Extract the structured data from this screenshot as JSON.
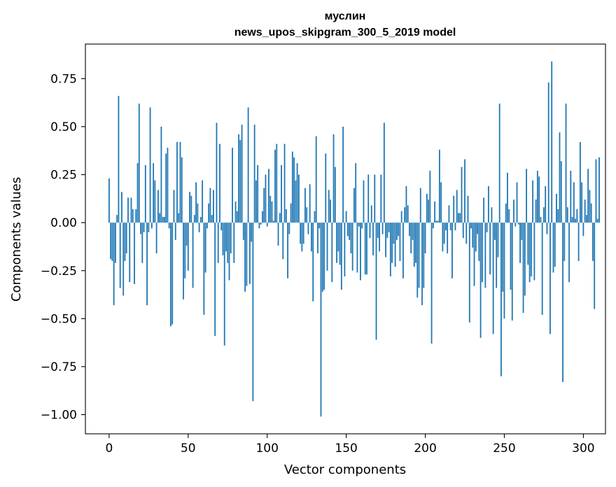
{
  "chart_data": {
    "type": "bar",
    "title": "муслин",
    "subtitle": "news_upos_skipgram_300_5_2019 model",
    "xlabel": "Vector components",
    "ylabel": "Components values",
    "xlim": [
      -15,
      314
    ],
    "ylim": [
      -1.1,
      0.93
    ],
    "xticks": [
      0,
      50,
      100,
      150,
      200,
      250,
      300
    ],
    "xtick_labels": [
      "0",
      "50",
      "100",
      "150",
      "200",
      "250",
      "300"
    ],
    "yticks": [
      -1.0,
      -0.75,
      -0.5,
      -0.25,
      0.0,
      0.25,
      0.5,
      0.75
    ],
    "ytick_labels": [
      "−1.00",
      "−0.75",
      "−0.50",
      "−0.25",
      "0.00",
      "0.25",
      "0.50",
      "0.75"
    ],
    "grid": false,
    "bar_color": "#1f77b4",
    "values": [
      0.23,
      -0.19,
      -0.2,
      -0.43,
      -0.21,
      0.04,
      0.66,
      -0.34,
      0.16,
      -0.38,
      -0.2,
      -0.16,
      0.13,
      -0.31,
      0.13,
      0.07,
      -0.32,
      0.07,
      0.31,
      0.62,
      -0.06,
      -0.21,
      -0.05,
      0.3,
      -0.43,
      -0.05,
      0.6,
      -0.03,
      0.31,
      0.22,
      -0.16,
      0.17,
      0.05,
      0.5,
      0.03,
      0.03,
      0.36,
      0.39,
      -0.03,
      -0.54,
      -0.53,
      0.17,
      -0.09,
      0.42,
      0.05,
      0.42,
      0.34,
      -0.4,
      -0.29,
      -0.12,
      -0.25,
      0.16,
      0.14,
      -0.34,
      0.04,
      0.21,
      0.1,
      -0.05,
      0.03,
      0.22,
      -0.48,
      -0.26,
      -0.03,
      0.1,
      0.18,
      0.04,
      0.17,
      -0.59,
      0.52,
      -0.21,
      0.41,
      -0.04,
      -0.17,
      -0.64,
      -0.15,
      -0.21,
      -0.3,
      -0.16,
      0.39,
      -0.21,
      0.11,
      0.06,
      0.46,
      0.43,
      0.51,
      -0.09,
      -0.36,
      -0.33,
      0.6,
      -0.32,
      -0.1,
      -0.93,
      0.51,
      0.22,
      0.3,
      -0.03,
      -0.01,
      0.06,
      0.18,
      0.25,
      -0.02,
      0.28,
      0.14,
      0.11,
      0.01,
      0.38,
      0.41,
      -0.12,
      0.05,
      0.3,
      -0.19,
      0.41,
      0.07,
      -0.29,
      -0.06,
      0.1,
      0.37,
      0.34,
      0.22,
      0.31,
      0.25,
      -0.11,
      -0.15,
      -0.11,
      0.18,
      0.08,
      -0.06,
      0.2,
      -0.15,
      -0.41,
      0.06,
      0.45,
      -0.16,
      -0.03,
      -1.01,
      -0.36,
      -0.35,
      0.36,
      -0.25,
      0.17,
      0.12,
      -0.31,
      0.46,
      0.29,
      -0.21,
      -0.15,
      -0.22,
      -0.35,
      0.5,
      -0.28,
      0.06,
      -0.07,
      -0.09,
      -0.16,
      -0.25,
      0.18,
      0.31,
      -0.26,
      -0.02,
      -0.3,
      -0.03,
      0.22,
      -0.27,
      -0.27,
      0.25,
      -0.08,
      0.09,
      -0.17,
      0.25,
      -0.61,
      -0.08,
      -0.15,
      0.25,
      -0.06,
      0.52,
      -0.18,
      -0.08,
      -0.05,
      -0.28,
      -0.21,
      -0.11,
      -0.23,
      -0.09,
      -0.07,
      -0.2,
      0.06,
      -0.29,
      0.08,
      0.19,
      0.09,
      -0.07,
      -0.16,
      -0.09,
      -0.23,
      -0.21,
      -0.39,
      -0.34,
      0.18,
      -0.43,
      -0.34,
      -0.16,
      0.15,
      0.12,
      0.27,
      -0.63,
      -0.03,
      0.11,
      0.01,
      0.01,
      0.38,
      0.21,
      -0.15,
      -0.11,
      -0.04,
      -0.16,
      0.09,
      -0.04,
      -0.29,
      0.14,
      -0.04,
      0.17,
      0.05,
      0.05,
      0.29,
      -0.08,
      0.33,
      -0.11,
      0.14,
      -0.52,
      -0.03,
      -0.13,
      -0.33,
      -0.15,
      -0.06,
      -0.2,
      -0.6,
      -0.31,
      0.13,
      -0.34,
      -0.05,
      0.19,
      -0.27,
      0.08,
      -0.58,
      -0.09,
      -0.34,
      -0.18,
      0.62,
      -0.8,
      -0.36,
      -0.5,
      0.1,
      0.26,
      0.07,
      -0.35,
      -0.51,
      0.12,
      -0.02,
      0.21,
      -0.01,
      -0.21,
      -0.09,
      -0.47,
      -0.38,
      0.28,
      -0.22,
      -0.31,
      -0.28,
      0.22,
      -0.3,
      0.12,
      0.27,
      0.24,
      0.03,
      -0.48,
      0.08,
      0.19,
      -0.06,
      0.73,
      -0.58,
      0.84,
      -0.26,
      -0.23,
      0.15,
      0.07,
      0.47,
      0.32,
      -0.83,
      -0.2,
      0.62,
      0.08,
      -0.31,
      0.27,
      0.03,
      0.21,
      0.02,
      0.07,
      -0.2,
      0.42,
      0.21,
      -0.07,
      0.12,
      0.04,
      0.28,
      0.17,
      0.1,
      -0.2,
      -0.45,
      0.33,
      0.02,
      0.34
    ]
  }
}
